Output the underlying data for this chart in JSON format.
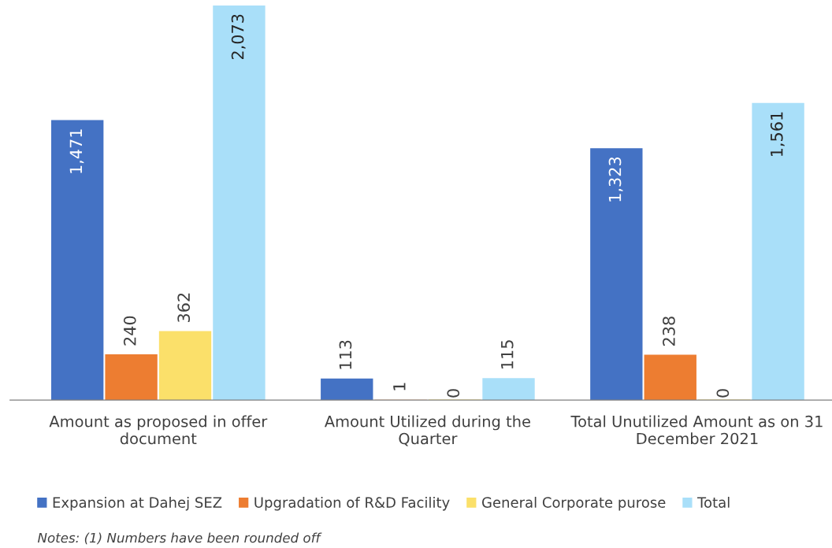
{
  "chart_data": {
    "type": "bar",
    "categories": [
      "Amount as proposed in offer\ndocument",
      "Amount Utilized during the\nQuarter",
      "Total Unutilized Amount as on 31\nDecember 2021"
    ],
    "series": [
      {
        "name": "Expansion at Dahej SEZ",
        "color": "#4472c4",
        "values": [
          1471,
          113,
          1323
        ],
        "value_labels": [
          "1,471",
          "113",
          "1,323"
        ]
      },
      {
        "name": "Upgradation of R&D Facility",
        "color": "#ed7d31",
        "values": [
          240,
          1,
          238
        ],
        "value_labels": [
          "240",
          "1",
          "238"
        ]
      },
      {
        "name": "General Corporate purose",
        "color": "#fbe06a",
        "values": [
          362,
          0,
          0
        ],
        "value_labels": [
          "362",
          "0",
          "0"
        ]
      },
      {
        "name": "Total",
        "color": "#a9dff9",
        "values": [
          2073,
          115,
          1561
        ],
        "value_labels": [
          "2,073",
          "115",
          "1,561"
        ]
      }
    ],
    "legend": "bottom",
    "annotations": [
      "Notes: (1) Numbers have been rounded off"
    ]
  }
}
